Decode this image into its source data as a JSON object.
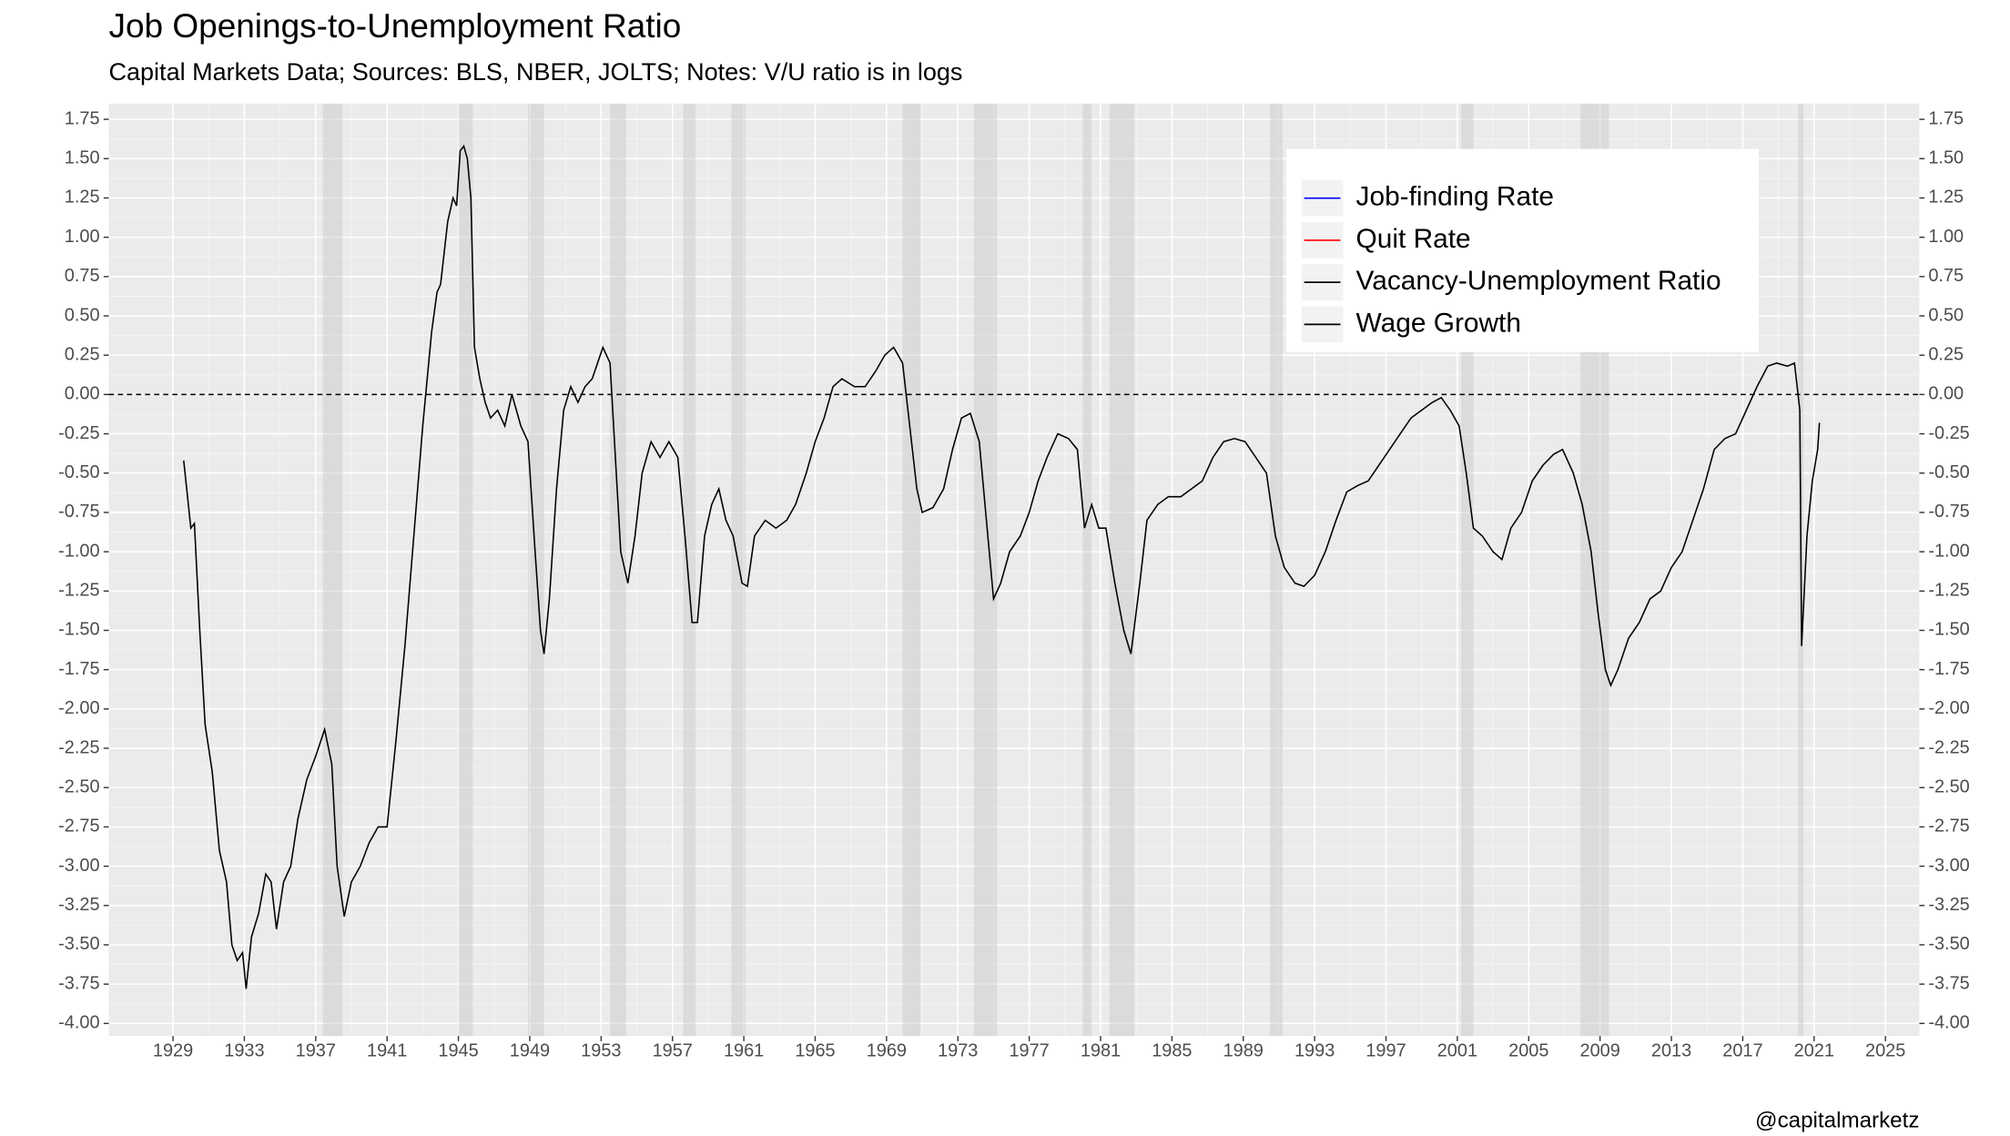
{
  "chart_data": {
    "type": "line",
    "title": "Job Openings-to-Unemployment Ratio",
    "subtitle": "Capital Markets Data; Sources: BLS, NBER, JOLTS; Notes: V/U ratio is in logs",
    "caption": "@capitalmarketz",
    "xlim": [
      1925.4,
      2026.9
    ],
    "ylim": [
      -4.08,
      1.85
    ],
    "xticks": [
      1929,
      1933,
      1937,
      1941,
      1945,
      1949,
      1953,
      1957,
      1961,
      1965,
      1969,
      1973,
      1977,
      1981,
      1985,
      1989,
      1993,
      1997,
      2001,
      2005,
      2009,
      2013,
      2017,
      2021,
      2025
    ],
    "yticks": [
      1.75,
      {
        "value": 1.5,
        "label": "1.50"
      },
      1.25,
      {
        "value": 1,
        "label": "1.00"
      },
      0.75,
      {
        "value": 0.5,
        "label": "0.50"
      },
      0.25,
      {
        "value": 0,
        "label": "0.00"
      },
      -0.25,
      {
        "value": -0.5,
        "label": "-0.50"
      },
      -0.75,
      {
        "value": -1,
        "label": "-1.00"
      },
      -1.25,
      {
        "value": -1.5,
        "label": "-1.50"
      },
      -1.75,
      {
        "value": -2,
        "label": "-2.00"
      },
      -2.25,
      {
        "value": -2.5,
        "label": "-2.50"
      },
      -2.75,
      {
        "value": -3,
        "label": "-3.00"
      },
      -3.25,
      {
        "value": -3.5,
        "label": "-3.50"
      },
      -3.75,
      {
        "value": -4,
        "label": "-4.00"
      }
    ],
    "hline": 0,
    "grid": true,
    "recessions": [
      [
        1937.4,
        1938.5
      ],
      [
        1945.0,
        1945.8
      ],
      [
        1948.9,
        1949.8
      ],
      [
        1953.5,
        1954.4
      ],
      [
        1957.6,
        1958.3
      ],
      [
        1960.3,
        1961.1
      ],
      [
        1969.9,
        1970.9
      ],
      [
        1973.9,
        1975.2
      ],
      [
        1980.0,
        1980.5
      ],
      [
        1981.5,
        1982.9
      ],
      [
        1990.5,
        1991.2
      ],
      [
        2001.2,
        2001.9
      ],
      [
        2007.9,
        2009.5
      ],
      [
        2020.1,
        2020.4
      ]
    ],
    "legend_position": "top-right",
    "legend": [
      {
        "name": "Job-finding Rate",
        "color": "#0000ff"
      },
      {
        "name": "Quit Rate",
        "color": "#ff0000"
      },
      {
        "name": "Vacancy-Unemployment Ratio",
        "color": "#000000"
      },
      {
        "name": "Wage Growth",
        "color": "#000000"
      }
    ],
    "series": [
      {
        "name": "Vacancy-Unemployment Ratio",
        "color": "#000000",
        "x": [
          1929.6,
          1930.0,
          1930.2,
          1930.5,
          1930.8,
          1931.2,
          1931.6,
          1932.0,
          1932.3,
          1932.6,
          1932.9,
          1933.1,
          1933.4,
          1933.8,
          1934.2,
          1934.5,
          1934.8,
          1935.2,
          1935.6,
          1936.0,
          1936.5,
          1937.0,
          1937.5,
          1937.9,
          1938.2,
          1938.6,
          1939.0,
          1939.5,
          1940.0,
          1940.5,
          1941.0,
          1941.5,
          1942.0,
          1942.5,
          1943.0,
          1943.5,
          1943.8,
          1944.0,
          1944.4,
          1944.7,
          1944.9,
          1945.1,
          1945.3,
          1945.5,
          1945.7,
          1945.9,
          1946.2,
          1946.5,
          1946.8,
          1947.2,
          1947.6,
          1948.0,
          1948.5,
          1948.9,
          1949.3,
          1949.6,
          1949.8,
          1950.1,
          1950.5,
          1950.9,
          1951.3,
          1951.7,
          1952.1,
          1952.5,
          1952.8,
          1953.1,
          1953.5,
          1953.8,
          1954.1,
          1954.5,
          1954.9,
          1955.3,
          1955.8,
          1956.3,
          1956.8,
          1957.3,
          1957.7,
          1958.1,
          1958.4,
          1958.8,
          1959.2,
          1959.6,
          1960.0,
          1960.4,
          1960.9,
          1961.2,
          1961.6,
          1962.2,
          1962.8,
          1963.4,
          1963.9,
          1964.5,
          1965.0,
          1965.5,
          1966.0,
          1966.5,
          1967.2,
          1967.8,
          1968.4,
          1968.9,
          1969.4,
          1969.9,
          1970.3,
          1970.7,
          1971.0,
          1971.6,
          1972.2,
          1972.7,
          1973.2,
          1973.7,
          1974.2,
          1974.6,
          1975.0,
          1975.4,
          1975.9,
          1976.5,
          1977.0,
          1977.5,
          1978.0,
          1978.6,
          1979.2,
          1979.7,
          1980.1,
          1980.5,
          1980.9,
          1981.3,
          1981.8,
          1982.3,
          1982.7,
          1983.2,
          1983.6,
          1984.2,
          1984.8,
          1985.5,
          1986.1,
          1986.7,
          1987.3,
          1987.9,
          1988.5,
          1989.1,
          1989.7,
          1990.3,
          1990.8,
          1991.3,
          1991.9,
          1992.4,
          1993.0,
          1993.6,
          1994.2,
          1994.8,
          1995.4,
          1996.0,
          1996.6,
          1997.2,
          1997.8,
          1998.4,
          1999.0,
          1999.6,
          2000.1,
          2000.6,
          2001.1,
          2001.5,
          2001.9,
          2002.4,
          2003.0,
          2003.5,
          2004.0,
          2004.6,
          2005.2,
          2005.8,
          2006.4,
          2006.9,
          2007.5,
          2008.0,
          2008.5,
          2008.9,
          2009.3,
          2009.6,
          2010.0,
          2010.6,
          2011.2,
          2011.8,
          2012.4,
          2013.0,
          2013.6,
          2014.2,
          2014.8,
          2015.4,
          2016.0,
          2016.6,
          2017.2,
          2017.8,
          2018.4,
          2018.9,
          2019.5,
          2019.9,
          2020.2,
          2020.3,
          2020.6,
          2020.9,
          2021.2,
          2021.3
        ],
        "values": [
          -0.42,
          -0.85,
          -0.82,
          -1.5,
          -2.1,
          -2.4,
          -2.9,
          -3.1,
          -3.5,
          -3.6,
          -3.55,
          -3.78,
          -3.45,
          -3.3,
          -3.05,
          -3.1,
          -3.4,
          -3.1,
          -3.0,
          -2.7,
          -2.45,
          -2.3,
          -2.13,
          -2.35,
          -3.0,
          -3.32,
          -3.1,
          -3.0,
          -2.85,
          -2.75,
          -2.75,
          -2.2,
          -1.6,
          -0.9,
          -0.2,
          0.4,
          0.65,
          0.7,
          1.1,
          1.25,
          1.2,
          1.55,
          1.58,
          1.5,
          1.25,
          0.3,
          0.1,
          -0.05,
          -0.15,
          -0.1,
          -0.2,
          0.0,
          -0.2,
          -0.3,
          -1.0,
          -1.5,
          -1.65,
          -1.3,
          -0.6,
          -0.1,
          0.05,
          -0.05,
          0.05,
          0.1,
          0.2,
          0.3,
          0.2,
          -0.4,
          -1.0,
          -1.2,
          -0.9,
          -0.5,
          -0.3,
          -0.4,
          -0.3,
          -0.4,
          -0.9,
          -1.45,
          -1.45,
          -0.9,
          -0.7,
          -0.6,
          -0.8,
          -0.9,
          -1.2,
          -1.22,
          -0.9,
          -0.8,
          -0.85,
          -0.8,
          -0.7,
          -0.5,
          -0.3,
          -0.15,
          0.05,
          0.1,
          0.05,
          0.05,
          0.15,
          0.25,
          0.3,
          0.2,
          -0.2,
          -0.6,
          -0.75,
          -0.72,
          -0.6,
          -0.35,
          -0.15,
          -0.12,
          -0.3,
          -0.8,
          -1.3,
          -1.2,
          -1.0,
          -0.9,
          -0.75,
          -0.55,
          -0.4,
          -0.25,
          -0.28,
          -0.35,
          -0.85,
          -0.7,
          -0.85,
          -0.85,
          -1.2,
          -1.5,
          -1.65,
          -1.2,
          -0.8,
          -0.7,
          -0.65,
          -0.65,
          -0.6,
          -0.55,
          -0.4,
          -0.3,
          -0.28,
          -0.3,
          -0.4,
          -0.5,
          -0.9,
          -1.1,
          -1.2,
          -1.22,
          -1.15,
          -1.0,
          -0.8,
          -0.62,
          -0.58,
          -0.55,
          -0.45,
          -0.35,
          -0.25,
          -0.15,
          -0.1,
          -0.05,
          -0.02,
          -0.1,
          -0.2,
          -0.5,
          -0.85,
          -0.9,
          -1.0,
          -1.05,
          -0.85,
          -0.75,
          -0.55,
          -0.45,
          -0.38,
          -0.35,
          -0.5,
          -0.7,
          -1.0,
          -1.4,
          -1.75,
          -1.85,
          -1.75,
          -1.55,
          -1.45,
          -1.3,
          -1.25,
          -1.1,
          -1.0,
          -0.8,
          -0.6,
          -0.35,
          -0.28,
          -0.25,
          -0.1,
          0.05,
          0.18,
          0.2,
          0.18,
          0.2,
          -0.1,
          -1.6,
          -0.9,
          -0.55,
          -0.35,
          -0.18
        ]
      }
    ]
  }
}
